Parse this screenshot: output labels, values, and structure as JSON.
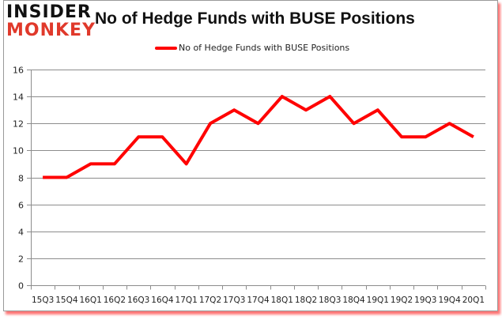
{
  "logo": {
    "line1": "INSIDER",
    "line2": "MONKEY",
    "line1_color": "#111111",
    "line2_color": "#e0392b"
  },
  "chart_data": {
    "type": "line",
    "title": "No of Hedge Funds with BUSE Positions",
    "xlabel": "",
    "ylabel": "",
    "legend": {
      "position": "top",
      "entries": [
        "No of Hedge Funds with BUSE Positions"
      ]
    },
    "grid": true,
    "ylim": [
      0,
      16
    ],
    "yticks": [
      0,
      2,
      4,
      6,
      8,
      10,
      12,
      14,
      16
    ],
    "categories": [
      "15Q3",
      "15Q4",
      "16Q1",
      "16Q2",
      "16Q3",
      "16Q4",
      "17Q1",
      "17Q2",
      "17Q3",
      "17Q4",
      "18Q1",
      "18Q2",
      "18Q3",
      "18Q4",
      "19Q1",
      "19Q2",
      "19Q3",
      "19Q4",
      "20Q1"
    ],
    "series": [
      {
        "name": "No of Hedge Funds with BUSE Positions",
        "color": "#ff0000",
        "values": [
          8,
          8,
          9,
          9,
          11,
          11,
          9,
          12,
          13,
          12,
          14,
          13,
          14,
          12,
          13,
          11,
          11,
          12,
          11
        ]
      }
    ]
  }
}
